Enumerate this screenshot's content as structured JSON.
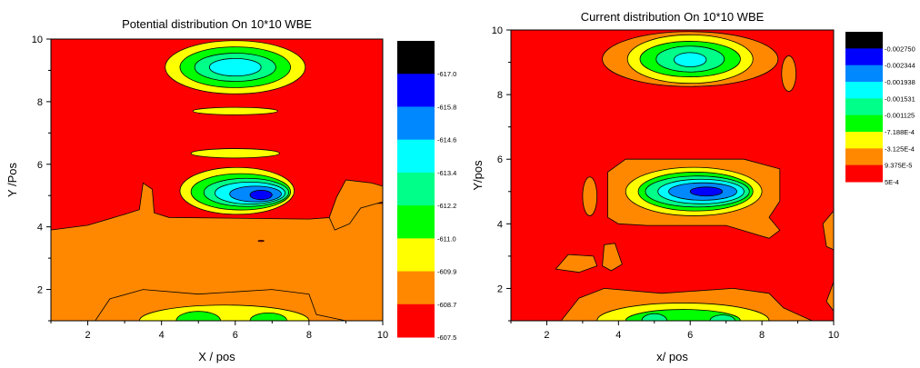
{
  "chart_data": [
    {
      "type": "contour",
      "title": "Potential distribution On 10*10 WBE",
      "xlabel": "X / pos",
      "ylabel": "Y /Pos",
      "xlim": [
        1,
        10
      ],
      "ylim": [
        1,
        10
      ],
      "xticks": [
        "2",
        "4",
        "6",
        "8",
        "10"
      ],
      "yticks": [
        "2",
        "4",
        "6",
        "8",
        "10"
      ],
      "levels": [
        {
          "label": "-617.0",
          "color": "#000000"
        },
        {
          "label": "-615.8",
          "color": "#0000ff"
        },
        {
          "label": "-614.6",
          "color": "#0088ff"
        },
        {
          "label": "-613.4",
          "color": "#00ffff"
        },
        {
          "label": "-612.2",
          "color": "#00ff88"
        },
        {
          "label": "-611.0",
          "color": "#00ff00"
        },
        {
          "label": "-609.9",
          "color": "#ffff00"
        },
        {
          "label": "-608.7",
          "color": "#ff8800"
        },
        {
          "label": "-607.5",
          "color": "#ff0000"
        }
      ],
      "features": [
        {
          "center": [
            6.0,
            9.1
          ],
          "min_level": "-612.2"
        },
        {
          "center": [
            6.7,
            5.0
          ],
          "min_level": "-615.8"
        },
        {
          "center": [
            5.7,
            1.0
          ],
          "min_level": "-611.0"
        }
      ]
    },
    {
      "type": "contour",
      "title": "Current distribution On 10*10 WBE",
      "xlabel": "x/ pos",
      "ylabel": "Y/pos",
      "xlim": [
        1,
        10
      ],
      "ylim": [
        1,
        10
      ],
      "xticks": [
        "2",
        "4",
        "6",
        "8",
        "10"
      ],
      "yticks": [
        "2",
        "4",
        "6",
        "8",
        "10"
      ],
      "levels": [
        {
          "label": "-0.002750",
          "color": "#000000"
        },
        {
          "label": "-0.002344",
          "color": "#0000ff"
        },
        {
          "label": "-0.001938",
          "color": "#0088ff"
        },
        {
          "label": "-0.001531",
          "color": "#00ffff"
        },
        {
          "label": "-0.001125",
          "color": "#00ff88"
        },
        {
          "label": "-7.188E-4",
          "color": "#00ff00"
        },
        {
          "label": "-3.125E-4",
          "color": "#ffff00"
        },
        {
          "label": "9.375E-5",
          "color": "#ff8800"
        },
        {
          "label": "5E-4",
          "color": "#ff0000"
        }
      ],
      "features": [
        {
          "center": [
            6.0,
            9.1
          ],
          "min_level": "-0.001531"
        },
        {
          "center": [
            6.3,
            5.0
          ],
          "min_level": "-0.002344"
        },
        {
          "center": [
            5.7,
            1.0
          ],
          "min_level": "-7.188E-4"
        }
      ]
    }
  ]
}
